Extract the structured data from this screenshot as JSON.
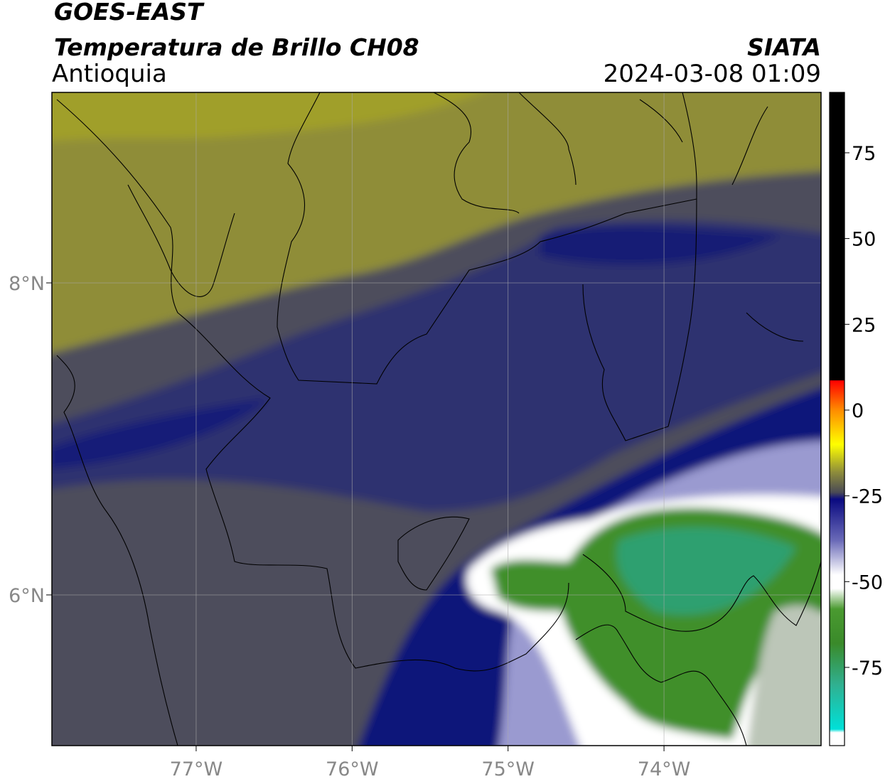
{
  "header": {
    "title": "GOES-EAST",
    "subtitle": "Temperatura de Brillo CH08",
    "region": "Antioquia",
    "source": "SIATA",
    "datetime": "2024-03-08 01:09"
  },
  "map": {
    "xlim": [
      -77.925,
      -72.993
    ],
    "ylim": [
      5.034,
      9.221
    ],
    "xticks": [
      {
        "value": -77,
        "label": "77°W"
      },
      {
        "value": -76,
        "label": "76°W"
      },
      {
        "value": -75,
        "label": "75°W"
      },
      {
        "value": -74,
        "label": "74°W"
      }
    ],
    "yticks": [
      {
        "value": 6,
        "label": "6°N"
      },
      {
        "value": 8,
        "label": "8°N"
      }
    ],
    "grid": true
  },
  "colorbar": {
    "lim": [
      -97.8,
      92.6
    ],
    "ticks": [
      75,
      50,
      25,
      0,
      -25,
      -50,
      -75
    ],
    "colormap": [
      {
        "value": 92.6,
        "color": "#000000"
      },
      {
        "value": 8.7,
        "color": "#000000"
      },
      {
        "value": 8.6,
        "color": "#ff0000"
      },
      {
        "value": 0,
        "color": "#ff8c00"
      },
      {
        "value": -10,
        "color": "#ffff00"
      },
      {
        "value": -18,
        "color": "#8f8e3a"
      },
      {
        "value": -24,
        "color": "#4a4a55"
      },
      {
        "value": -26,
        "color": "#0a0a80"
      },
      {
        "value": -38,
        "color": "#6a6ab8"
      },
      {
        "value": -48,
        "color": "#ffffff"
      },
      {
        "value": -52,
        "color": "#ffffff"
      },
      {
        "value": -58,
        "color": "#4a9a30"
      },
      {
        "value": -68,
        "color": "#3a8a2a"
      },
      {
        "value": -80,
        "color": "#30b090"
      },
      {
        "value": -93,
        "color": "#00e0d8"
      },
      {
        "value": -94,
        "color": "#ffffff"
      },
      {
        "value": -97.8,
        "color": "#ffffff"
      }
    ]
  }
}
